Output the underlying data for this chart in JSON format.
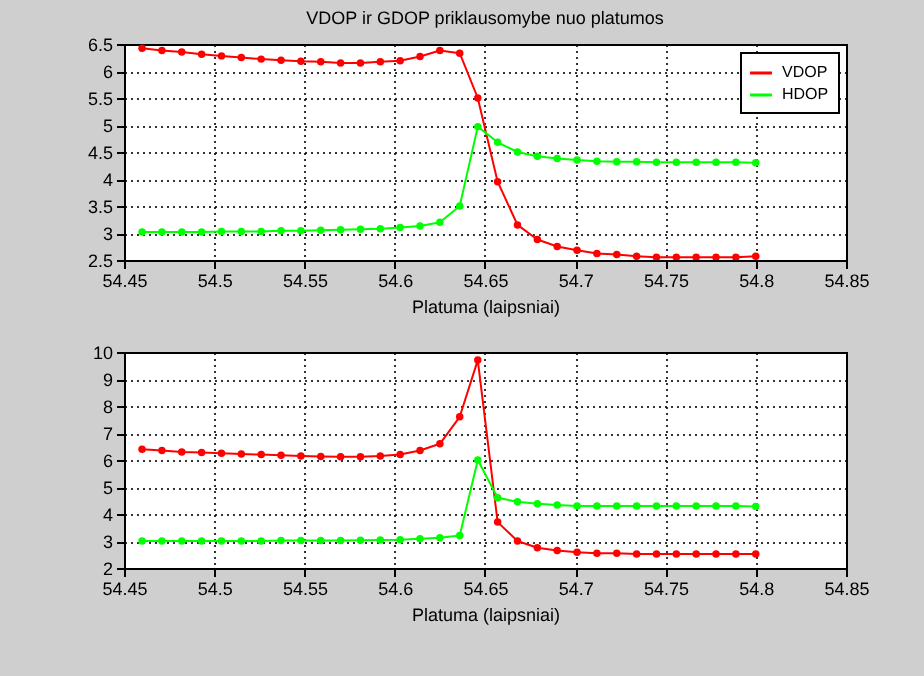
{
  "chart_data": [
    {
      "type": "line",
      "title": "VDOP ir GDOP priklausomybe nuo platumos",
      "xlabel": "Platuma (laipsniai)",
      "x": [
        54.46,
        54.471,
        54.482,
        54.493,
        54.504,
        54.515,
        54.526,
        54.537,
        54.548,
        54.559,
        54.57,
        54.581,
        54.592,
        54.603,
        54.614,
        54.625,
        54.636,
        54.646,
        54.657,
        54.668,
        54.679,
        54.69,
        54.701,
        54.712,
        54.723,
        54.734,
        54.745,
        54.756,
        54.767,
        54.778,
        54.789,
        54.8
      ],
      "series": [
        {
          "name": "VDOP",
          "color": "#ff0000",
          "values": [
            6.42,
            6.38,
            6.35,
            6.31,
            6.28,
            6.25,
            6.22,
            6.2,
            6.18,
            6.17,
            6.15,
            6.15,
            6.17,
            6.19,
            6.27,
            6.38,
            6.33,
            5.5,
            3.95,
            3.15,
            2.88,
            2.75,
            2.68,
            2.62,
            2.6,
            2.57,
            2.55,
            2.55,
            2.55,
            2.55,
            2.55,
            2.57
          ]
        },
        {
          "name": "HDOP",
          "color": "#00ff00",
          "values": [
            3.02,
            3.02,
            3.02,
            3.02,
            3.03,
            3.03,
            3.03,
            3.04,
            3.04,
            3.05,
            3.06,
            3.07,
            3.08,
            3.1,
            3.13,
            3.2,
            3.5,
            4.97,
            4.68,
            4.5,
            4.42,
            4.38,
            4.35,
            4.33,
            4.32,
            4.32,
            4.31,
            4.31,
            4.31,
            4.31,
            4.31,
            4.3
          ]
        }
      ],
      "xlim": [
        54.45,
        54.85
      ],
      "xticks": [
        54.45,
        54.5,
        54.55,
        54.6,
        54.65,
        54.7,
        54.75,
        54.8,
        54.85
      ],
      "ylim": [
        2.5,
        6.5
      ],
      "yticks": [
        2.5,
        3,
        3.5,
        4,
        4.5,
        5,
        5.5,
        6,
        6.5
      ],
      "grid": true,
      "legend": "top right",
      "marker": "circle",
      "line_style": "solid"
    },
    {
      "type": "line",
      "xlabel": "Platuma (laipsniai)",
      "x": [
        54.46,
        54.471,
        54.482,
        54.493,
        54.504,
        54.515,
        54.526,
        54.537,
        54.548,
        54.559,
        54.57,
        54.581,
        54.592,
        54.603,
        54.614,
        54.625,
        54.636,
        54.646,
        54.657,
        54.668,
        54.679,
        54.69,
        54.701,
        54.712,
        54.723,
        54.734,
        54.745,
        54.756,
        54.767,
        54.778,
        54.789,
        54.8
      ],
      "series": [
        {
          "name": "VDOP",
          "color": "#ff0000",
          "values": [
            6.4,
            6.35,
            6.3,
            6.28,
            6.25,
            6.22,
            6.2,
            6.18,
            6.15,
            6.13,
            6.12,
            6.12,
            6.15,
            6.2,
            6.35,
            6.6,
            7.6,
            9.7,
            3.7,
            3.0,
            2.75,
            2.65,
            2.58,
            2.55,
            2.55,
            2.52,
            2.52,
            2.52,
            2.52,
            2.52,
            2.52,
            2.52
          ]
        },
        {
          "name": "HDOP",
          "color": "#00ff00",
          "values": [
            3.0,
            3.0,
            3.0,
            3.0,
            3.0,
            3.0,
            3.0,
            3.02,
            3.02,
            3.02,
            3.02,
            3.03,
            3.04,
            3.05,
            3.08,
            3.12,
            3.2,
            6.0,
            4.6,
            4.45,
            4.38,
            4.33,
            4.3,
            4.3,
            4.3,
            4.3,
            4.3,
            4.3,
            4.3,
            4.3,
            4.3,
            4.28
          ]
        }
      ],
      "xlim": [
        54.45,
        54.85
      ],
      "xticks": [
        54.45,
        54.5,
        54.55,
        54.6,
        54.65,
        54.7,
        54.75,
        54.8,
        54.85
      ],
      "ylim": [
        2,
        10
      ],
      "yticks": [
        2,
        3,
        4,
        5,
        6,
        7,
        8,
        9,
        10
      ],
      "grid": true,
      "legend": "top right",
      "marker": "circle",
      "line_style": "solid"
    }
  ]
}
